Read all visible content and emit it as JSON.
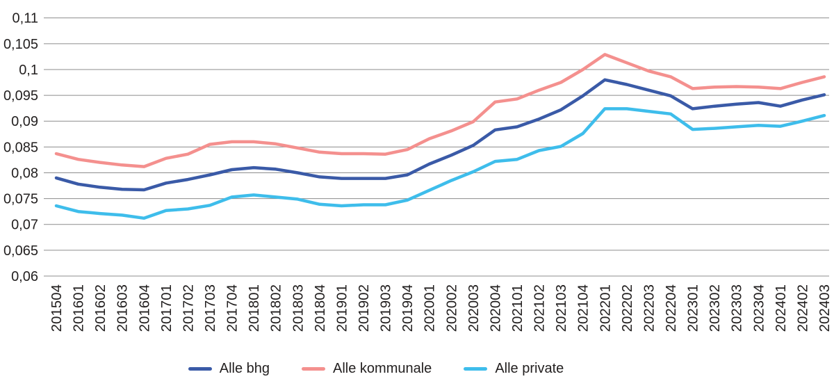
{
  "chart_data": {
    "type": "line",
    "title": "",
    "xlabel": "",
    "ylabel": "",
    "decimal_separator": ",",
    "grid": "horizontal-only",
    "legend_position": "bottom",
    "ylim": [
      0.06,
      0.11
    ],
    "categories": [
      "201504",
      "201601",
      "201602",
      "201603",
      "201604",
      "201701",
      "201702",
      "201703",
      "201704",
      "201801",
      "201802",
      "201803",
      "201804",
      "201901",
      "201902",
      "201903",
      "201904",
      "202001",
      "202002",
      "202003",
      "202004",
      "202101",
      "202102",
      "202103",
      "202104",
      "202201",
      "202202",
      "202203",
      "202204",
      "202301",
      "202302",
      "202303",
      "202304",
      "202401",
      "202402",
      "202403"
    ],
    "y_axis": {
      "min": 0.06,
      "max": 0.11,
      "step": 0.005,
      "tick_labels": [
        "0,11",
        "0,105",
        "0,1",
        "0,095",
        "0,09",
        "0,085",
        "0,08",
        "0,075",
        "0,07",
        "0,065",
        "0,06"
      ]
    },
    "x_axis": {
      "label_rotation": -90
    },
    "series": [
      {
        "name": "Alle bhg",
        "color": "#3A5AA7",
        "values": [
          0.079,
          0.0778,
          0.0772,
          0.0768,
          0.0767,
          0.078,
          0.0787,
          0.0796,
          0.0806,
          0.081,
          0.0807,
          0.08,
          0.0792,
          0.0789,
          0.0789,
          0.0789,
          0.0796,
          0.0817,
          0.0834,
          0.0853,
          0.0883,
          0.0889,
          0.0904,
          0.0922,
          0.0949,
          0.098,
          0.0971,
          0.096,
          0.0949,
          0.0924,
          0.0929,
          0.0933,
          0.0936,
          0.0929,
          0.0941,
          0.0951
        ]
      },
      {
        "name": "Alle kommunale",
        "color": "#F4908E",
        "values": [
          0.0837,
          0.0826,
          0.082,
          0.0815,
          0.0812,
          0.0828,
          0.0836,
          0.0855,
          0.086,
          0.086,
          0.0856,
          0.0848,
          0.084,
          0.0837,
          0.0837,
          0.0836,
          0.0845,
          0.0866,
          0.0881,
          0.0899,
          0.0937,
          0.0943,
          0.096,
          0.0975,
          0.1,
          0.1029,
          0.1013,
          0.0997,
          0.0986,
          0.0963,
          0.0966,
          0.0967,
          0.0966,
          0.0963,
          0.0975,
          0.0986
        ]
      },
      {
        "name": "Alle private",
        "color": "#3EBDEB",
        "values": [
          0.0736,
          0.0725,
          0.0721,
          0.0718,
          0.0712,
          0.0727,
          0.073,
          0.0737,
          0.0753,
          0.0757,
          0.0753,
          0.0749,
          0.0739,
          0.0736,
          0.0738,
          0.0738,
          0.0747,
          0.0766,
          0.0785,
          0.0802,
          0.0822,
          0.0826,
          0.0843,
          0.0851,
          0.0876,
          0.0924,
          0.0924,
          0.0919,
          0.0914,
          0.0884,
          0.0886,
          0.0889,
          0.0892,
          0.089,
          0.09,
          0.0911
        ]
      }
    ]
  },
  "colors": {
    "grid": "#8C8C8C",
    "text": "#221F1F",
    "background": "#FFFFFF"
  }
}
